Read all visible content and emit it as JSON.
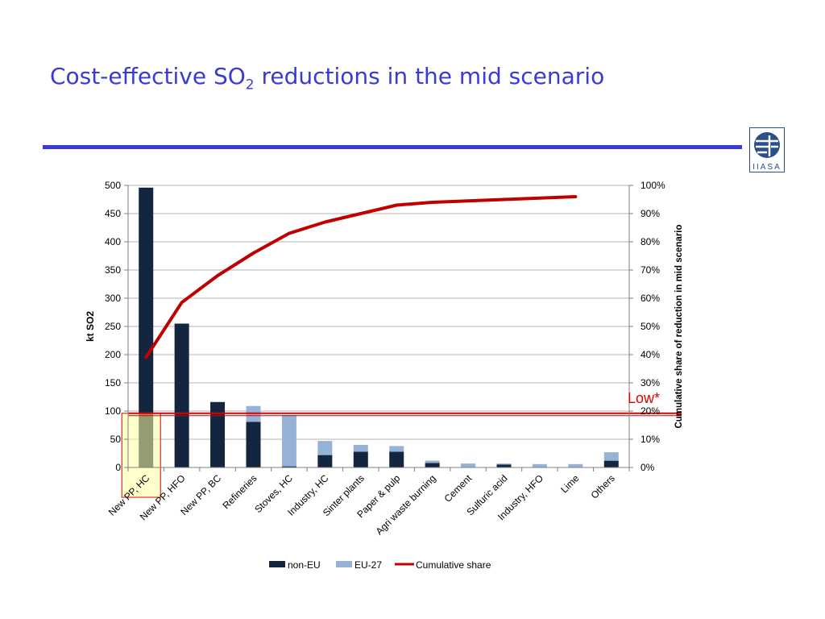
{
  "slide": {
    "title_pre": "Cost-effective SO",
    "title_sub": "2",
    "title_post": " reductions in the mid scenario",
    "logo_text": "IIASA",
    "logo_icon": "iiasa-globe-icon"
  },
  "chart_data": {
    "type": "bar",
    "stacked": true,
    "categories": [
      "New PP, HC",
      "New PP, HFO",
      "New PP, BC",
      "Refineries",
      "Stoves, HC",
      "Industry, HC",
      "Sinter plants",
      "Paper & pulp",
      "Agri waste burning",
      "Cement",
      "Sulfuric acid",
      "Industry, HFO",
      "Lime",
      "Others"
    ],
    "series": [
      {
        "name": "non-EU",
        "color": "#14253f",
        "values": [
          496,
          255,
          116,
          81,
          2,
          22,
          28,
          28,
          8,
          0,
          5,
          0,
          0,
          12
        ]
      },
      {
        "name": "EU-27",
        "color": "#95b3d7",
        "values": [
          0,
          0,
          0,
          28,
          91,
          25,
          12,
          10,
          4,
          7,
          2,
          6,
          6,
          15
        ]
      },
      {
        "name": "Cumulative share",
        "color": "#c00000",
        "axis": "right",
        "values": [
          0.39,
          0.585,
          0.68,
          0.76,
          0.83,
          0.87,
          0.9,
          0.93,
          0.94,
          0.945,
          0.95,
          0.955,
          0.96,
          null
        ]
      }
    ],
    "ylabel": "kt SO2",
    "y2label": "Cumulative share of reduction in mid scenario",
    "ylim": [
      0,
      500
    ],
    "yticks": [
      "0",
      "50",
      "100",
      "150",
      "200",
      "250",
      "300",
      "350",
      "400",
      "450",
      "500"
    ],
    "y2lim": [
      0,
      1
    ],
    "y2ticks": [
      "0%",
      "10%",
      "20%",
      "30%",
      "40%",
      "50%",
      "60%",
      "70%",
      "80%",
      "90%",
      "100%"
    ],
    "grid": true,
    "legend": "bottom",
    "annotation": {
      "text": "Low*",
      "y_value": 96,
      "color": "#e00000"
    },
    "highlight_category": "New PP, HC"
  }
}
